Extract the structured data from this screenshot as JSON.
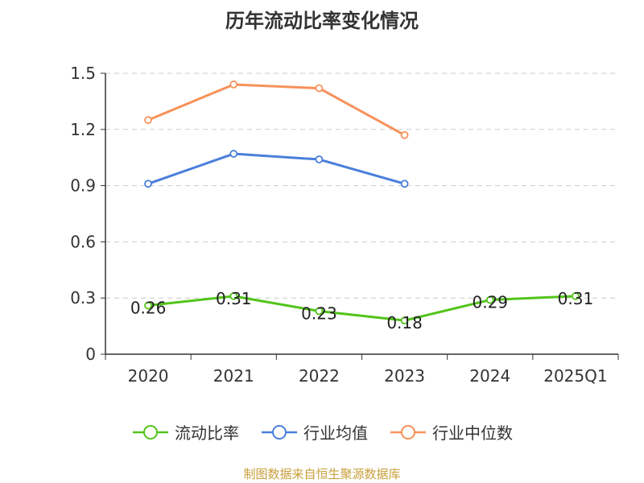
{
  "chart_data": {
    "type": "line",
    "title": "历年流动比率变化情况",
    "categories": [
      "2020",
      "2021",
      "2022",
      "2023",
      "2024",
      "2025Q1"
    ],
    "ylim": [
      0,
      1.5
    ],
    "yticks": [
      "0",
      "0.3",
      "0.6",
      "0.9",
      "1.2",
      "1.5"
    ],
    "grid": true,
    "legend_position": "bottom",
    "series": [
      {
        "name": "流动比率",
        "color": "#52c41a",
        "values": [
          0.26,
          0.31,
          0.23,
          0.18,
          0.29,
          0.31
        ],
        "labels": [
          "0.26",
          "0.31",
          "0.23",
          "0.18",
          "0.29",
          "0.31"
        ]
      },
      {
        "name": "行业均值",
        "color": "#4a7fdb",
        "values": [
          0.91,
          1.07,
          1.04,
          0.91,
          null,
          null
        ]
      },
      {
        "name": "行业中位数",
        "color": "#f7925a",
        "values": [
          1.25,
          1.44,
          1.42,
          1.17,
          null,
          null
        ]
      }
    ]
  },
  "source_text": "制图数据来自恒生聚源数据库"
}
